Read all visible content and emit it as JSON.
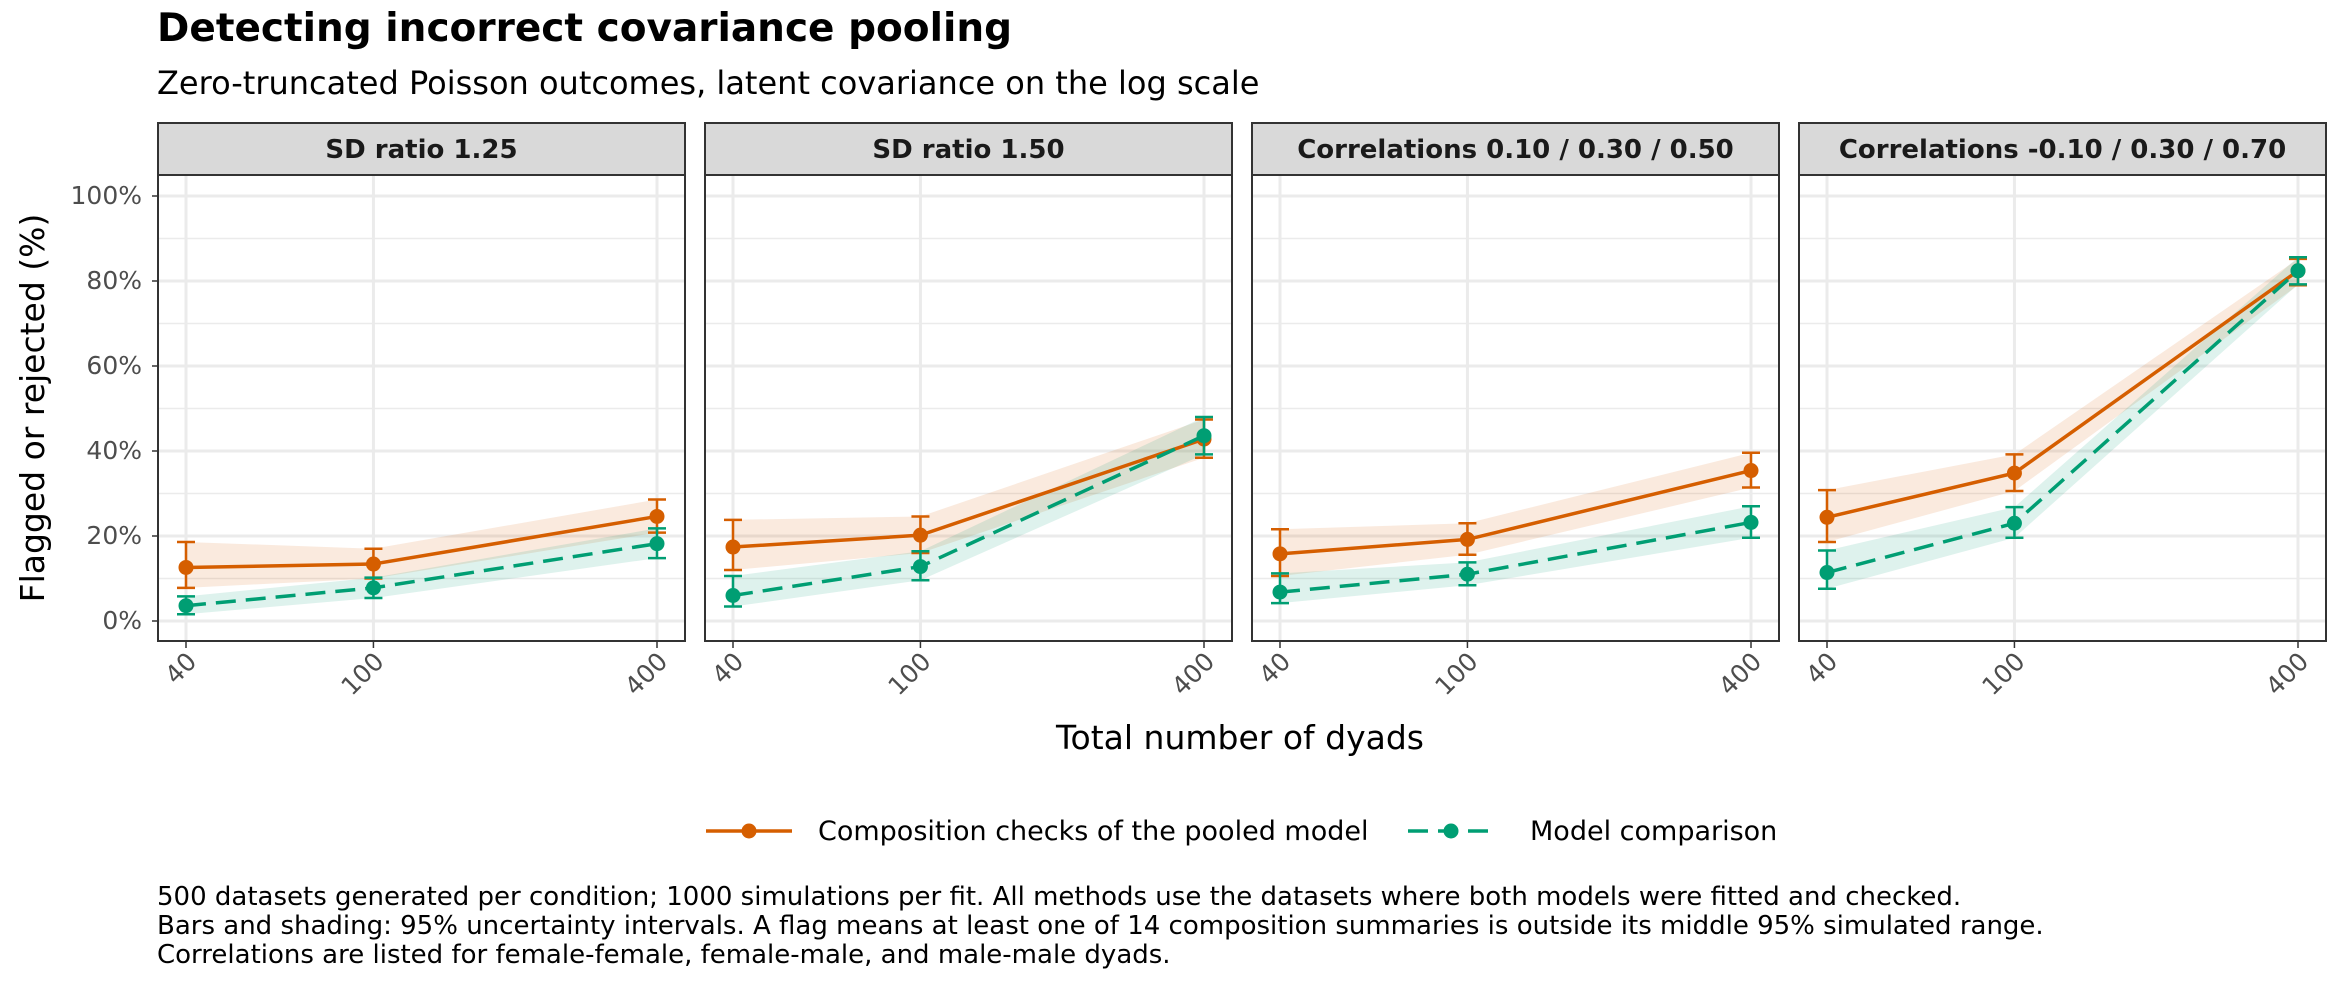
{
  "title": "Detecting incorrect covariance pooling",
  "subtitle": "Zero-truncated Poisson outcomes, latent covariance on the log scale",
  "caption": [
    "500 datasets generated per condition; 1000 simulations per fit. All methods use the datasets where both models were fitted and checked.",
    "Bars and shading: 95% uncertainty intervals. A flag means at least one of 14 composition summaries is outside its middle 95% simulated range.",
    "Correlations are listed for female-female, female-male, and male-male dyads."
  ],
  "colors": {
    "composition": "#D55E00",
    "comparison": "#009E73",
    "strip_fill": "#D9D9D9",
    "grid": "#EBEBEB"
  },
  "chart_data": {
    "type": "line",
    "xlabel": "Total number of dyads",
    "ylabel": "Flagged or rejected (%)",
    "x": [
      40,
      100,
      400
    ],
    "x_tick_labels": [
      "40",
      "100",
      "400"
    ],
    "x_scale": "log",
    "ylim": [
      -5,
      110
    ],
    "y_ticks": [
      0,
      20,
      40,
      60,
      80,
      100
    ],
    "y_tick_labels": [
      "0%",
      "20%",
      "40%",
      "60%",
      "80%",
      "100%"
    ],
    "grid": true,
    "legend_position": "bottom",
    "legend": [
      {
        "key": "composition",
        "label": "Composition checks of the pooled model",
        "linestyle": "solid"
      },
      {
        "key": "comparison",
        "label": "Model comparison",
        "linestyle": "dashed"
      }
    ],
    "panels": [
      {
        "label": "SD ratio 1.25",
        "series": [
          {
            "key": "composition",
            "values": [
              12.6,
              13.4,
              24.6
            ],
            "lower": [
              7.8,
              10.0,
              20.8
            ],
            "upper": [
              18.6,
              17.0,
              28.6
            ]
          },
          {
            "key": "comparison",
            "values": [
              3.6,
              7.8,
              18.2
            ],
            "lower": [
              1.6,
              5.4,
              14.8
            ],
            "upper": [
              5.8,
              10.2,
              21.8
            ]
          }
        ]
      },
      {
        "label": "SD ratio 1.50",
        "series": [
          {
            "key": "composition",
            "values": [
              17.4,
              20.2,
              42.8
            ],
            "lower": [
              12.0,
              16.0,
              38.4
            ],
            "upper": [
              23.8,
              24.6,
              47.4
            ]
          },
          {
            "key": "comparison",
            "values": [
              6.0,
              12.8,
              43.6
            ],
            "lower": [
              3.4,
              9.6,
              39.2
            ],
            "upper": [
              10.6,
              16.4,
              48.0
            ]
          }
        ]
      },
      {
        "label": "Correlations 0.10 / 0.30 / 0.50",
        "series": [
          {
            "key": "composition",
            "values": [
              15.8,
              19.2,
              35.4
            ],
            "lower": [
              10.6,
              15.6,
              31.4
            ],
            "upper": [
              21.6,
              23.0,
              39.6
            ]
          },
          {
            "key": "comparison",
            "values": [
              6.8,
              11.0,
              23.2
            ],
            "lower": [
              4.2,
              8.4,
              19.6
            ],
            "upper": [
              11.2,
              13.8,
              27.0
            ]
          }
        ]
      },
      {
        "label": "Correlations -0.10 / 0.30 / 0.70",
        "series": [
          {
            "key": "composition",
            "values": [
              24.4,
              34.8,
              82.4
            ],
            "lower": [
              18.6,
              30.6,
              79.0
            ],
            "upper": [
              30.8,
              39.2,
              85.2
            ]
          },
          {
            "key": "comparison",
            "values": [
              11.4,
              23.0,
              82.4
            ],
            "lower": [
              7.6,
              19.6,
              79.2
            ],
            "upper": [
              16.6,
              26.8,
              85.6
            ]
          }
        ]
      }
    ]
  }
}
